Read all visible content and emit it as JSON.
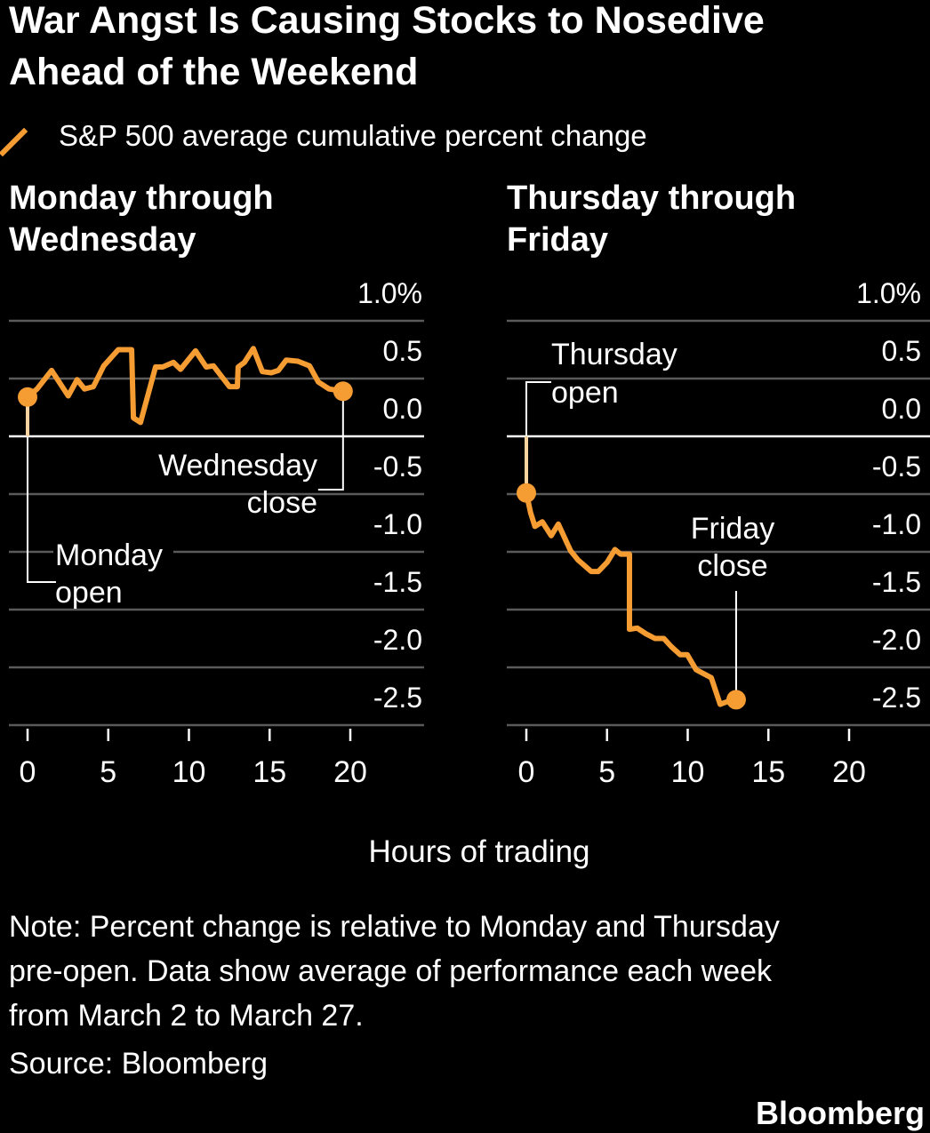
{
  "title": [
    "War Angst Is Causing Stocks to Nosedive",
    "Ahead of the Weekend"
  ],
  "legend": "S&P 500 average cumulative percent change",
  "colors": {
    "line": "#f59c33",
    "grid": "#5a5a5a",
    "zero": "#ffffff",
    "background": "#000000"
  },
  "note": [
    "Note: Percent change is relative to Monday and Thursday",
    "pre-open. Data show average of performance each week",
    "from March 2 to March 27."
  ],
  "source": "Source: Bloomberg",
  "brand": "Bloomberg",
  "chart_data": [
    {
      "type": "line",
      "title": [
        "Monday through",
        "Wednesday"
      ],
      "xlabel": "Hours of trading",
      "xlim": [
        0,
        20
      ],
      "xticks": [
        "0",
        "5",
        "10",
        "15",
        "20"
      ],
      "ylim": [
        -2.5,
        1.0
      ],
      "yticks": [
        "1.0%",
        "0.5",
        "0.0",
        "-0.5",
        "-1.0",
        "-1.5",
        "-2.0",
        "-2.5"
      ],
      "ytick_values": [
        1.0,
        0.5,
        0.0,
        -0.5,
        -1.0,
        -1.5,
        -2.0,
        -2.5
      ],
      "annotations": {
        "start": [
          "Monday",
          "open"
        ],
        "end": [
          "Wednesday",
          "close"
        ]
      },
      "x": [
        0,
        0.59,
        1.49,
        2.52,
        3.07,
        3.53,
        4.08,
        4.72,
        5.62,
        6.45,
        6.56,
        7.0,
        7.93,
        8.37,
        9.04,
        9.48,
        10.41,
        11.07,
        11.52,
        12.51,
        13.0,
        13.05,
        13.44,
        13.99,
        14.55,
        15.1,
        15.54,
        16.03,
        16.75,
        17.47,
        18.02,
        18.68,
        19.55
      ],
      "y": [
        0.34,
        0.41,
        0.57,
        0.35,
        0.49,
        0.41,
        0.43,
        0.61,
        0.75,
        0.75,
        0.16,
        0.12,
        0.6,
        0.6,
        0.64,
        0.58,
        0.74,
        0.6,
        0.61,
        0.43,
        0.43,
        0.6,
        0.64,
        0.76,
        0.56,
        0.55,
        0.57,
        0.66,
        0.65,
        0.61,
        0.47,
        0.41,
        0.39
      ]
    },
    {
      "type": "line",
      "title": [
        "Thursday through",
        "Friday"
      ],
      "xlabel": "Hours of trading",
      "xlim": [
        0,
        20
      ],
      "xticks": [
        "0",
        "5",
        "10",
        "15",
        "20"
      ],
      "ylim": [
        -2.5,
        1.0
      ],
      "yticks": [
        "1.0%",
        "0.5",
        "0.0",
        "-0.5",
        "-1.0",
        "-1.5",
        "-2.0",
        "-2.5"
      ],
      "ytick_values": [
        1.0,
        0.5,
        0.0,
        -0.5,
        -1.0,
        -1.5,
        -2.0,
        -2.5
      ],
      "annotations": {
        "start": [
          "Thursday",
          "open"
        ],
        "end": [
          "Friday",
          "close"
        ]
      },
      "x": [
        0,
        0.26,
        0.53,
        0.99,
        1.54,
        1.98,
        2.74,
        3.2,
        4.02,
        4.46,
        5.01,
        5.49,
        5.84,
        6.39,
        6.39,
        6.87,
        7.42,
        7.97,
        8.52,
        8.98,
        9.53,
        9.97,
        10.52,
        11.46,
        12.01,
        12.39,
        13.0
      ],
      "y": [
        -0.49,
        -0.66,
        -0.78,
        -0.74,
        -0.86,
        -0.76,
        -0.99,
        -1.07,
        -1.17,
        -1.17,
        -1.09,
        -0.98,
        -1.02,
        -1.02,
        -1.67,
        -1.66,
        -1.71,
        -1.75,
        -1.75,
        -1.82,
        -1.89,
        -1.89,
        -2.02,
        -2.09,
        -2.32,
        -2.3,
        -2.28
      ]
    }
  ]
}
